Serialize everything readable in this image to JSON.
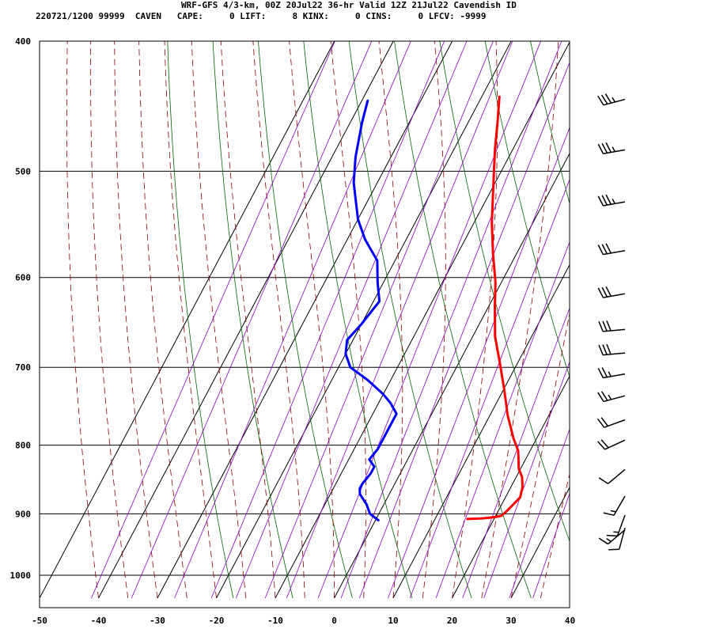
{
  "header": {
    "title": "WRF-GFS 4/3-km, 00Z 20Jul22 36-hr Valid 12Z 21Jul22 Cavendish ID",
    "info": "220721/1200 99999  CAVEN   CAPE:     0 LIFT:     8 KINX:     0 CINS:     0 LFCV: -9999"
  },
  "chart_data": {
    "type": "line",
    "title": "WRF-GFS 4/3-km, 00Z 20Jul22 36-hr Valid 12Z 21Jul22 Cavendish ID",
    "xlabel": "",
    "ylabel": "",
    "x_ticks": [
      "-50",
      "-40",
      "-30",
      "-20",
      "-10",
      "0",
      "10",
      "20",
      "30",
      "40"
    ],
    "y_ticks": [
      "400",
      "500",
      "600",
      "700",
      "800",
      "900",
      "1000"
    ],
    "xlim": [
      -50,
      40
    ],
    "ylim": [
      1040,
      400
    ],
    "y_scale": "log-pressure (skew-T)",
    "grid": true,
    "colors": {
      "temperature": "#ff0000",
      "dewpoint": "#0000ff",
      "dry_adiabat": "#006400",
      "moist_adiabat": "#8b0000",
      "mixing_ratio": "#8b00c8",
      "wind": "#000000"
    },
    "series": [
      {
        "key": "temperature",
        "points": [
          [
            15.5,
            908
          ],
          [
            18.0,
            907
          ],
          [
            20.0,
            905
          ],
          [
            21.0,
            903
          ],
          [
            21.5,
            895
          ],
          [
            22.0,
            885
          ],
          [
            22.5,
            875
          ],
          [
            22.0,
            860
          ],
          [
            21.0,
            845
          ],
          [
            19.7,
            833
          ],
          [
            18.0,
            808
          ],
          [
            16.0,
            790
          ],
          [
            13.0,
            760
          ],
          [
            10.0,
            726
          ],
          [
            7.0,
            695
          ],
          [
            3.8,
            664
          ],
          [
            1.0,
            630
          ],
          [
            -1.0,
            605
          ],
          [
            -4.0,
            576
          ],
          [
            -7.0,
            546
          ],
          [
            -10.0,
            513
          ],
          [
            -13.0,
            482
          ],
          [
            -15.0,
            460
          ],
          [
            -17.0,
            440
          ]
        ]
      },
      {
        "key": "dewpoint",
        "points": [
          [
            0.5,
            910
          ],
          [
            -0.5,
            905
          ],
          [
            -1.5,
            900
          ],
          [
            -3.0,
            885
          ],
          [
            -5.0,
            870
          ],
          [
            -5.5,
            862
          ],
          [
            -5.5,
            855
          ],
          [
            -5.0,
            840
          ],
          [
            -5.0,
            830
          ],
          [
            -6.5,
            820
          ],
          [
            -6.0,
            805
          ],
          [
            -6.0,
            780
          ],
          [
            -6.0,
            758
          ],
          [
            -8.0,
            744
          ],
          [
            -10.0,
            733
          ],
          [
            -14.0,
            715
          ],
          [
            -18.0,
            700
          ],
          [
            -20.0,
            684
          ],
          [
            -21.0,
            668
          ],
          [
            -20.0,
            650
          ],
          [
            -19.0,
            625
          ],
          [
            -21.0,
            605
          ],
          [
            -23.0,
            583
          ],
          [
            -27.0,
            562
          ],
          [
            -30.0,
            543
          ],
          [
            -34.0,
            510
          ],
          [
            -36.0,
            488
          ],
          [
            -38.0,
            460
          ],
          [
            -39.0,
            443
          ]
        ]
      }
    ],
    "wind_barbs": [
      {
        "p": 442,
        "dir": 255,
        "speed": 35
      },
      {
        "p": 482,
        "dir": 260,
        "speed": 35
      },
      {
        "p": 527,
        "dir": 260,
        "speed": 35
      },
      {
        "p": 573,
        "dir": 260,
        "speed": 30
      },
      {
        "p": 617,
        "dir": 260,
        "speed": 30
      },
      {
        "p": 656,
        "dir": 265,
        "speed": 30
      },
      {
        "p": 683,
        "dir": 265,
        "speed": 30
      },
      {
        "p": 708,
        "dir": 260,
        "speed": 25
      },
      {
        "p": 735,
        "dir": 255,
        "speed": 25
      },
      {
        "p": 766,
        "dir": 250,
        "speed": 20
      },
      {
        "p": 793,
        "dir": 245,
        "speed": 20
      },
      {
        "p": 834,
        "dir": 230,
        "speed": 10
      },
      {
        "p": 873,
        "dir": 210,
        "speed": 15
      },
      {
        "p": 902,
        "dir": 200,
        "speed": 15
      },
      {
        "p": 922,
        "dir": 195,
        "speed": 10
      },
      {
        "p": 925,
        "dir": 230,
        "speed": 15
      }
    ]
  }
}
